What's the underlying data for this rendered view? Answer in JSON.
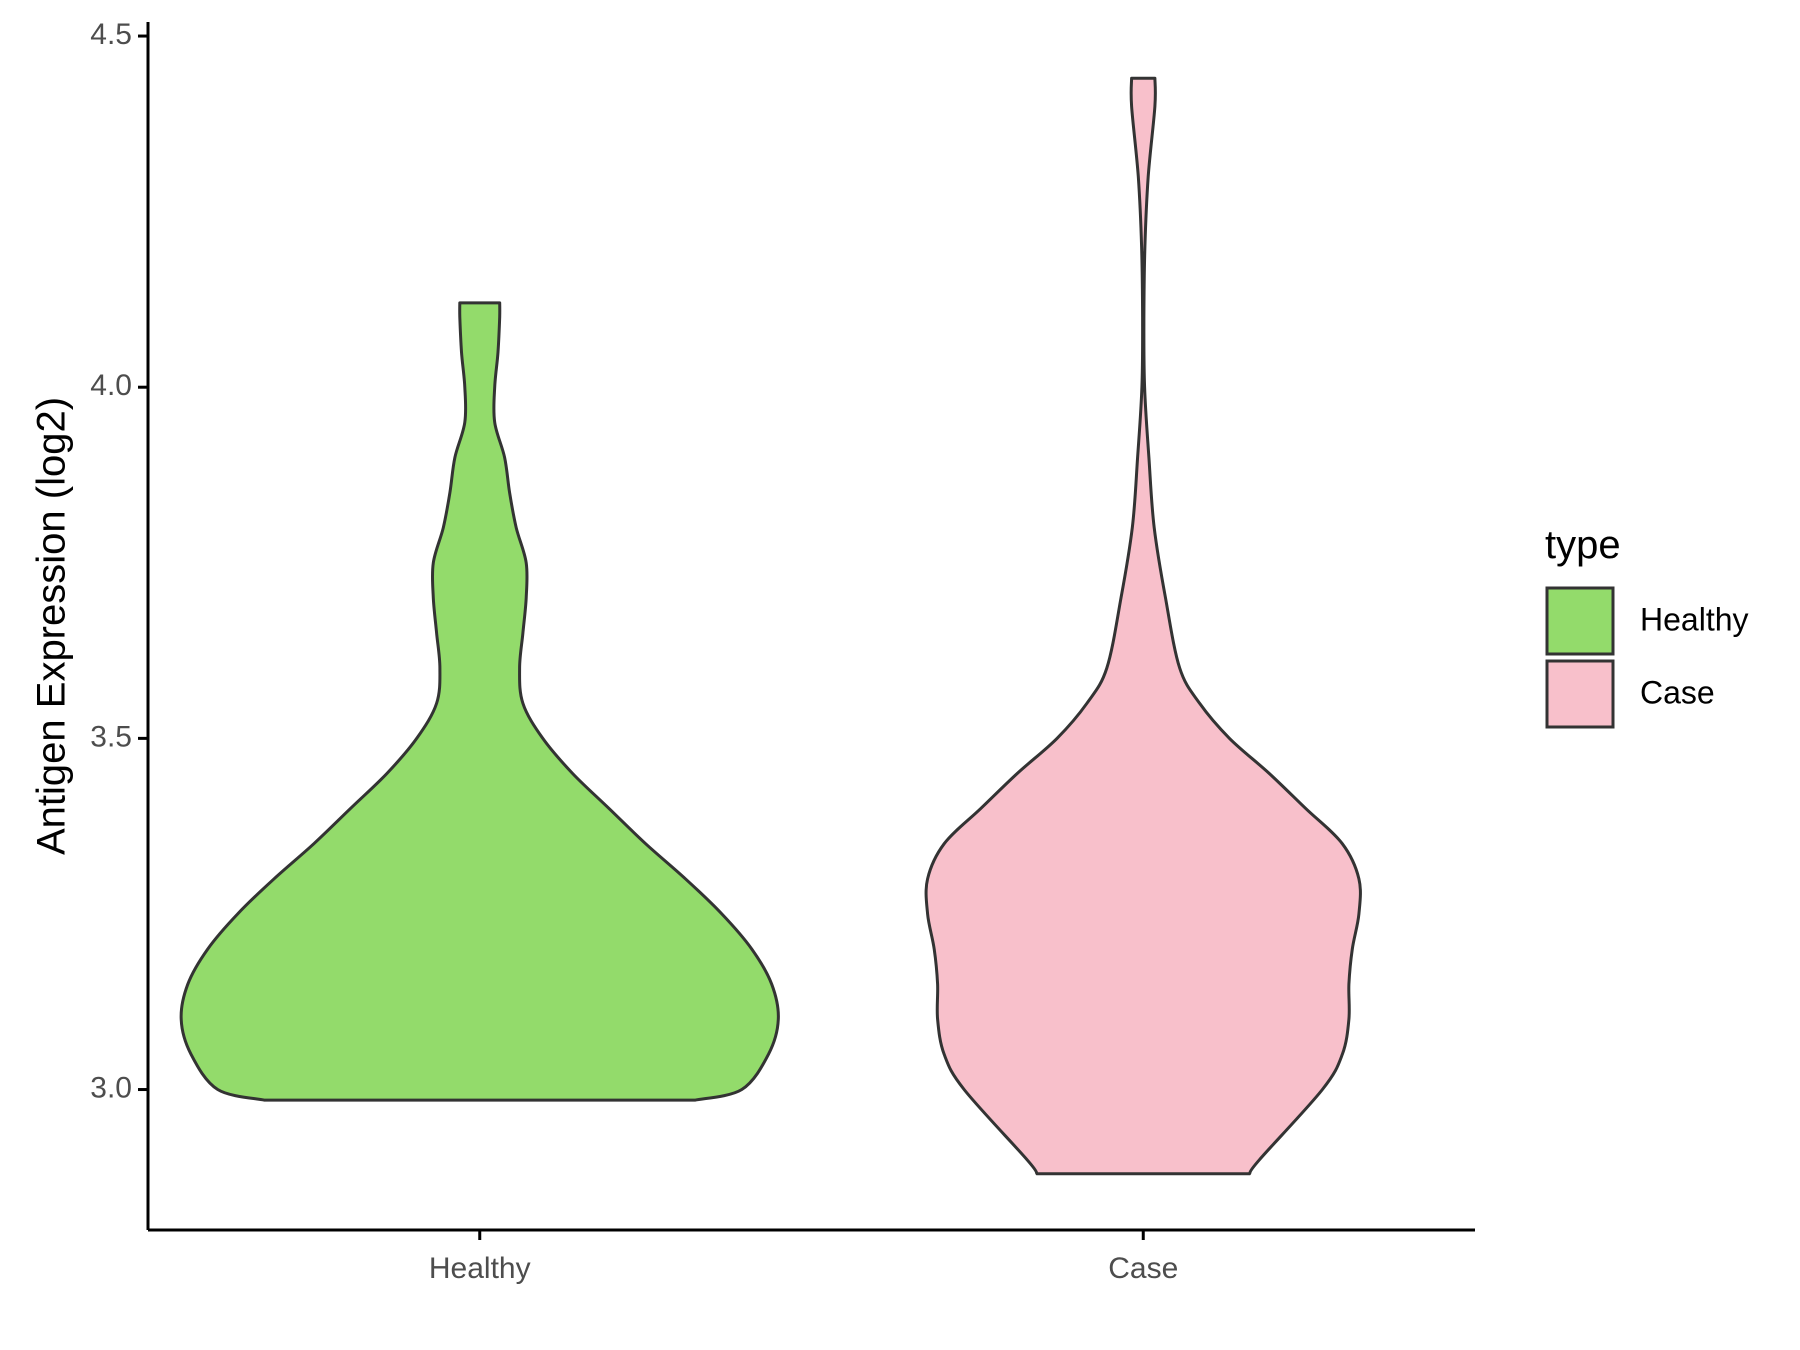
{
  "chart_data": {
    "type": "violin",
    "title": "",
    "xlabel": "",
    "ylabel": "Antigen Expression (log2)",
    "ylim": [
      2.8,
      4.52
    ],
    "yticks": [
      3.0,
      3.5,
      4.0,
      4.5
    ],
    "ytick_labels": [
      "3.0",
      "3.5",
      "4.0",
      "4.5"
    ],
    "categories": [
      "Healthy",
      "Case"
    ],
    "grid": false,
    "legend": {
      "title": "type",
      "position": "right",
      "entries": [
        "Healthy",
        "Case"
      ]
    },
    "series": [
      {
        "name": "Healthy",
        "color": "#93DB6B",
        "min": 2.985,
        "max": 4.12,
        "profile": [
          [
            2.985,
            0.65
          ],
          [
            3.0,
            0.79
          ],
          [
            3.05,
            0.87
          ],
          [
            3.1,
            0.9
          ],
          [
            3.15,
            0.88
          ],
          [
            3.2,
            0.82
          ],
          [
            3.25,
            0.73
          ],
          [
            3.3,
            0.62
          ],
          [
            3.35,
            0.5
          ],
          [
            3.4,
            0.39
          ],
          [
            3.45,
            0.28
          ],
          [
            3.5,
            0.19
          ],
          [
            3.55,
            0.13
          ],
          [
            3.6,
            0.12
          ],
          [
            3.65,
            0.13
          ],
          [
            3.7,
            0.14
          ],
          [
            3.75,
            0.14
          ],
          [
            3.8,
            0.11
          ],
          [
            3.85,
            0.09
          ],
          [
            3.9,
            0.075
          ],
          [
            3.95,
            0.045
          ],
          [
            4.0,
            0.045
          ],
          [
            4.05,
            0.055
          ],
          [
            4.1,
            0.06
          ],
          [
            4.12,
            0.06
          ]
        ]
      },
      {
        "name": "Case",
        "color": "#F8C0CB",
        "min": 2.88,
        "max": 4.44,
        "profile": [
          [
            2.88,
            0.32
          ],
          [
            2.9,
            0.35
          ],
          [
            3.0,
            0.54
          ],
          [
            3.05,
            0.6
          ],
          [
            3.1,
            0.62
          ],
          [
            3.15,
            0.62
          ],
          [
            3.2,
            0.63
          ],
          [
            3.25,
            0.65
          ],
          [
            3.3,
            0.65
          ],
          [
            3.35,
            0.6
          ],
          [
            3.4,
            0.49
          ],
          [
            3.45,
            0.38
          ],
          [
            3.5,
            0.26
          ],
          [
            3.55,
            0.17
          ],
          [
            3.6,
            0.11
          ],
          [
            3.7,
            0.067
          ],
          [
            3.8,
            0.033
          ],
          [
            3.9,
            0.017
          ],
          [
            4.0,
            0.004
          ],
          [
            4.1,
            0.002
          ],
          [
            4.2,
            0.005
          ],
          [
            4.3,
            0.015
          ],
          [
            4.4,
            0.035
          ],
          [
            4.44,
            0.035
          ]
        ]
      }
    ]
  }
}
